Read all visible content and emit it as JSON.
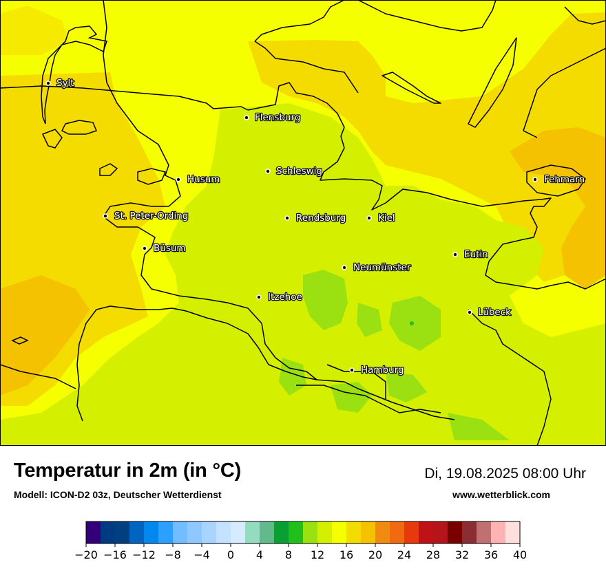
{
  "map": {
    "cities": [
      {
        "name": "Sylt"
      },
      {
        "name": "Flensburg"
      },
      {
        "name": "Schleswig"
      },
      {
        "name": "Husum"
      },
      {
        "name": "Fehmarn"
      },
      {
        "name": "St. Peter-Ording"
      },
      {
        "name": "Rendsburg"
      },
      {
        "name": "Kiel"
      },
      {
        "name": "Büsum"
      },
      {
        "name": "Eutin"
      },
      {
        "name": "Neumünster"
      },
      {
        "name": "Itzehoe"
      },
      {
        "name": "Lübeck"
      },
      {
        "name": "Hamburg"
      }
    ]
  },
  "header": {
    "title": "Temperatur in 2m (in °C)",
    "model": "Modell: ICON-D2 03z, Deutscher Wetterdienst",
    "datetime": "Di, 19.08.2025 08:00 Uhr",
    "website": "www.wetterblick.com"
  },
  "legend": {
    "min": -20,
    "max": 40,
    "step": 2,
    "tick_labels": [
      "−20",
      "−16",
      "−12",
      "−8",
      "−4",
      "0",
      "4",
      "8",
      "12",
      "16",
      "20",
      "24",
      "28",
      "32",
      "36",
      "40"
    ],
    "colors": [
      "#330077",
      "#003a82",
      "#003f80",
      "#0064c0",
      "#0088ee",
      "#2ba0ff",
      "#72bdff",
      "#8ec8ff",
      "#a8d5ff",
      "#c4e2ff",
      "#d6ebff",
      "#93dcc0",
      "#64b98c",
      "#0a9f32",
      "#21bf1a",
      "#9be010",
      "#d4f000",
      "#f5ff00",
      "#f3dd00",
      "#f5c200",
      "#f08a10",
      "#f26a10",
      "#e8390d",
      "#be1216",
      "#b5141a",
      "#7a0000",
      "#8a2e33",
      "#c07070",
      "#ffb3b3",
      "#ffdede"
    ]
  }
}
